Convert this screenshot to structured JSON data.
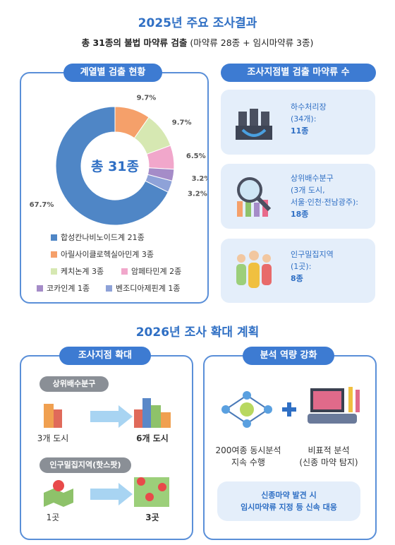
{
  "header": {
    "title": "2025년 주요 조사결과",
    "subtitle": "총 31종의 불법 마약류 검출",
    "subtitle_note": "(마약류 28종 + 임시마약류 3종)"
  },
  "chart_data": {
    "type": "pie",
    "title": "계열별 검출 현황",
    "center_label": "총 31종",
    "categories": [
      "합성칸나비노이드계 21종",
      "아릴사이클로헥실아민계 3종",
      "케치논계 3종",
      "암페타민계 2종",
      "코카인계 1종",
      "벤조디아제핀계 1종"
    ],
    "values": [
      67.7,
      9.7,
      9.7,
      6.5,
      3.2,
      3.2
    ],
    "value_labels": [
      "67.7%",
      "9.7%",
      "9.7%",
      "6.5%",
      "3.2%",
      "3.2%"
    ],
    "colors": [
      "#4f86c6",
      "#f5a06a",
      "#d6e8b2",
      "#f1a7cb",
      "#a58cc8",
      "#8ea2d8"
    ]
  },
  "sites": {
    "title": "조사지점별 검출 마약류 수",
    "items": [
      {
        "lines": [
          "하수처리장",
          "(34개):"
        ],
        "count": "11종"
      },
      {
        "lines": [
          "상위배수분구",
          "(3개 도시,",
          "서울·인천·전남광주):"
        ],
        "count": "18종"
      },
      {
        "lines": [
          "인구밀집지역",
          "(1곳):"
        ],
        "count": "8종"
      }
    ]
  },
  "plan": {
    "title": "2026년 조사 확대 계획",
    "expand": {
      "title": "조사지점 확대",
      "groups": [
        {
          "label": "상위배수분구",
          "from": "3개 도시",
          "to": "6개 도시"
        },
        {
          "label": "인구밀집지역(핫스팟)",
          "from": "1곳",
          "to": "3곳"
        }
      ]
    },
    "capacity": {
      "title": "분석 역량 강화",
      "items": [
        {
          "lines": [
            "200여종 동시분석",
            "지속 수행"
          ]
        },
        {
          "lines": [
            "비표적 분석",
            "(신종 마약 탐지)"
          ]
        }
      ],
      "note": [
        "신종마약 발견 시",
        "임시마약류 지정 등 신속 대응"
      ]
    }
  }
}
